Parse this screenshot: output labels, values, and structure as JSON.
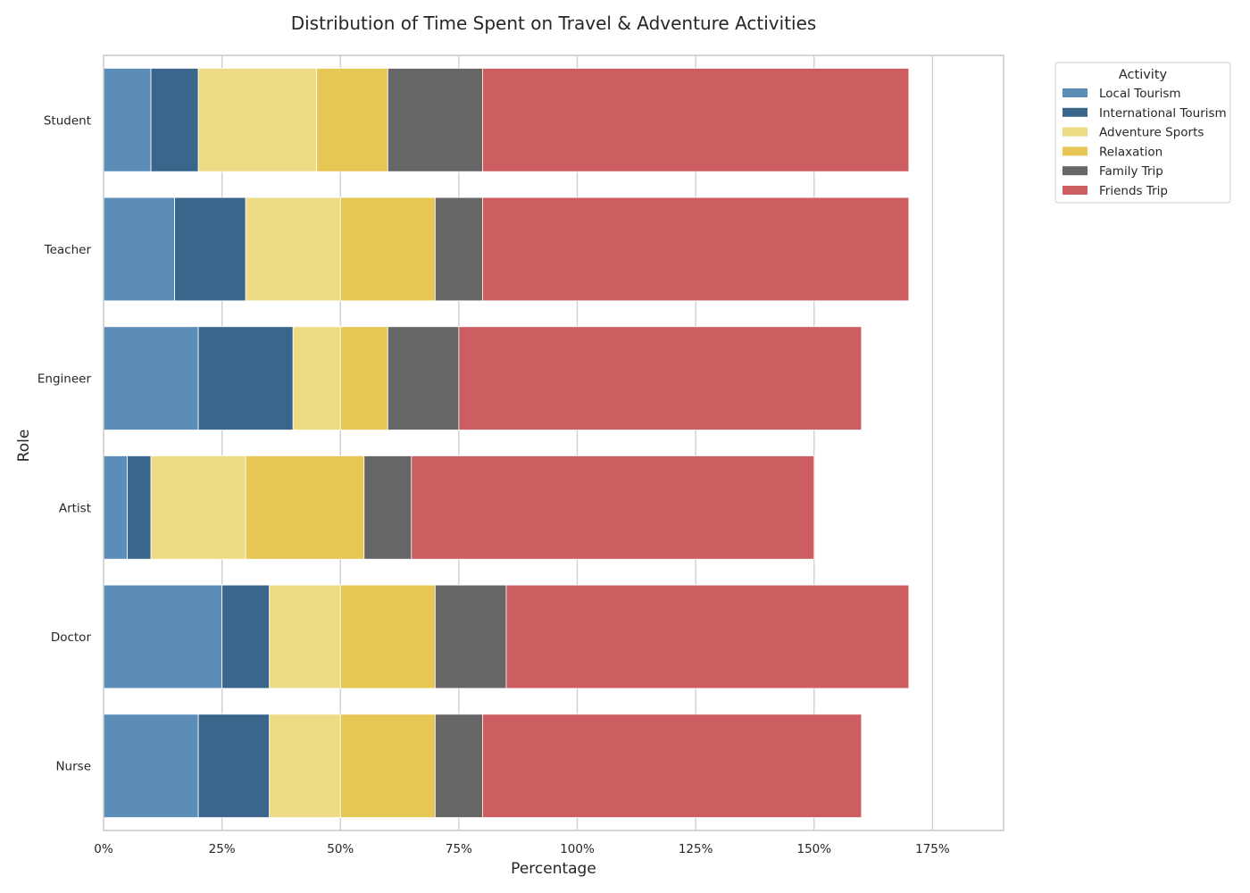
{
  "chart_data": {
    "type": "bar",
    "orientation": "horizontal",
    "stacked": true,
    "title": "Distribution of Time Spent on Travel & Adventure Activities",
    "xlabel": "Percentage",
    "ylabel": "Role",
    "xlim": [
      0,
      190
    ],
    "x_ticks": [
      0,
      25,
      50,
      75,
      100,
      125,
      150,
      175
    ],
    "x_tick_format": "{v}%",
    "grid": "x",
    "categories": [
      "Student",
      "Teacher",
      "Engineer",
      "Artist",
      "Doctor",
      "Nurse"
    ],
    "series": [
      {
        "name": "Local Tourism",
        "color": "#5b8db8",
        "values": [
          10,
          15,
          20,
          5,
          25,
          20
        ]
      },
      {
        "name": "International Tourism",
        "color": "#3b668c",
        "values": [
          10,
          15,
          20,
          5,
          10,
          15
        ]
      },
      {
        "name": "Adventure Sports",
        "color": "#eddc84",
        "values": [
          25,
          20,
          10,
          20,
          15,
          15
        ]
      },
      {
        "name": "Relaxation",
        "color": "#e6c654",
        "values": [
          15,
          20,
          10,
          25,
          20,
          20
        ]
      },
      {
        "name": "Family Trip",
        "color": "#666666",
        "values": [
          20,
          10,
          15,
          10,
          15,
          10
        ]
      },
      {
        "name": "Friends Trip",
        "color": "#cc5d61",
        "values": [
          90,
          90,
          85,
          85,
          85,
          80
        ]
      }
    ],
    "legend": {
      "title": "Activity",
      "placement": "outside-top-right"
    }
  }
}
